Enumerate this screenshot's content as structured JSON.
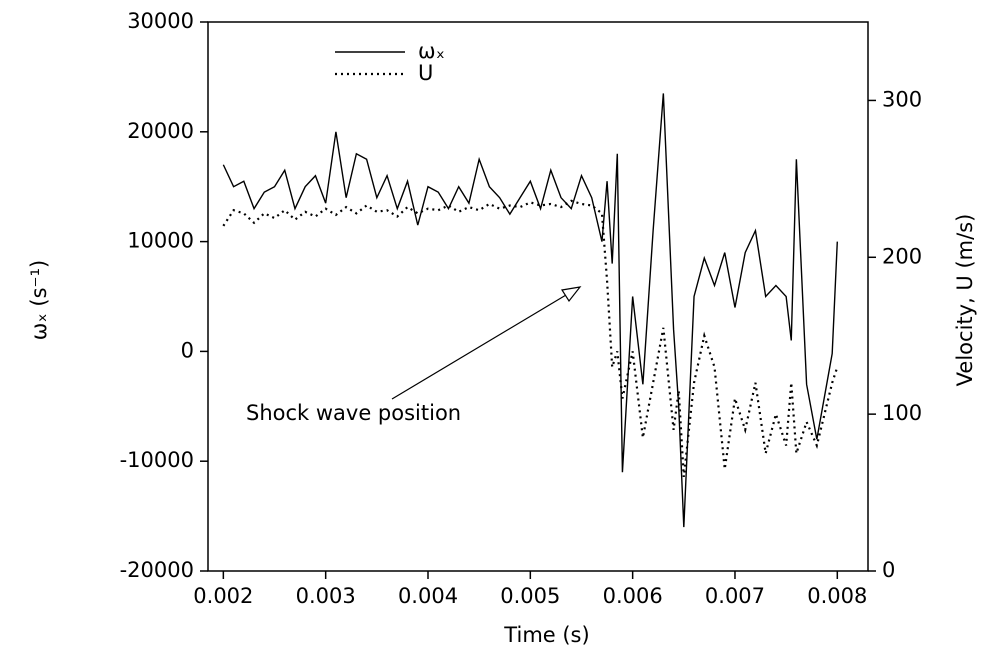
{
  "chart_data": {
    "type": "line",
    "xlabel": "Time (s)",
    "ylabel": "ωₓ (s⁻¹)",
    "y2label": "Velocity, U (m/s)",
    "annotation": "Shock wave position",
    "x": [
      0.002,
      0.0021,
      0.0022,
      0.0023,
      0.0024,
      0.0025,
      0.0026,
      0.0027,
      0.0028,
      0.0029,
      0.003,
      0.0031,
      0.0032,
      0.0033,
      0.0034,
      0.0035,
      0.0036,
      0.0037,
      0.0038,
      0.0039,
      0.004,
      0.0041,
      0.0042,
      0.0043,
      0.0044,
      0.0045,
      0.0046,
      0.0047,
      0.0048,
      0.0049,
      0.005,
      0.0051,
      0.0052,
      0.0053,
      0.0054,
      0.0055,
      0.0056,
      0.0057,
      0.00575,
      0.0058,
      0.00585,
      0.0059,
      0.006,
      0.0061,
      0.0062,
      0.0063,
      0.0064,
      0.00645,
      0.0065,
      0.0066,
      0.0067,
      0.0068,
      0.0069,
      0.007,
      0.0071,
      0.0072,
      0.0073,
      0.0074,
      0.0075,
      0.00755,
      0.0076,
      0.0077,
      0.0078,
      0.00795,
      0.008
    ],
    "series": [
      {
        "name": "ωₓ",
        "color": "#000000",
        "style": "solid",
        "values": [
          17000,
          15000,
          15500,
          13000,
          14500,
          15000,
          16500,
          13000,
          15000,
          16000,
          13500,
          20000,
          14000,
          18000,
          17500,
          14000,
          16000,
          13000,
          15500,
          11500,
          15000,
          14500,
          13000,
          15000,
          13500,
          17500,
          15000,
          14000,
          12500,
          14000,
          15500,
          13000,
          16500,
          14000,
          13000,
          16000,
          14000,
          10000,
          15500,
          8000,
          18000,
          -11000,
          5000,
          -3000,
          11000,
          23500,
          2000,
          -5000,
          -16000,
          5000,
          8500,
          6000,
          9000,
          4000,
          9000,
          11000,
          5000,
          6000,
          5000,
          1000,
          17500,
          -3000,
          -8000,
          -200,
          10000
        ]
      },
      {
        "name": "U",
        "color": "#000000",
        "style": "dotted",
        "axis": "y2",
        "values": [
          220,
          230,
          228,
          222,
          228,
          225,
          230,
          224,
          229,
          226,
          231,
          227,
          232,
          228,
          233,
          229,
          230,
          226,
          232,
          228,
          231,
          230,
          233,
          229,
          232,
          230,
          234,
          231,
          233,
          232,
          235,
          233,
          234,
          232,
          236,
          234,
          233,
          228,
          185,
          130,
          140,
          110,
          140,
          85,
          120,
          155,
          90,
          115,
          60,
          120,
          150,
          130,
          65,
          110,
          90,
          120,
          75,
          100,
          80,
          120,
          75,
          95,
          80,
          120,
          130
        ]
      }
    ],
    "xlim": [
      0.00185,
      0.0083
    ],
    "xticks": [
      0.002,
      0.003,
      0.004,
      0.005,
      0.006,
      0.007,
      0.008
    ],
    "ylim": [
      -20000,
      30000
    ],
    "yticks": [
      -20000,
      -10000,
      0,
      10000,
      20000,
      30000
    ],
    "y2lim": [
      0,
      350
    ],
    "y2ticks": [
      0,
      100,
      200,
      300
    ],
    "grid": false
  }
}
